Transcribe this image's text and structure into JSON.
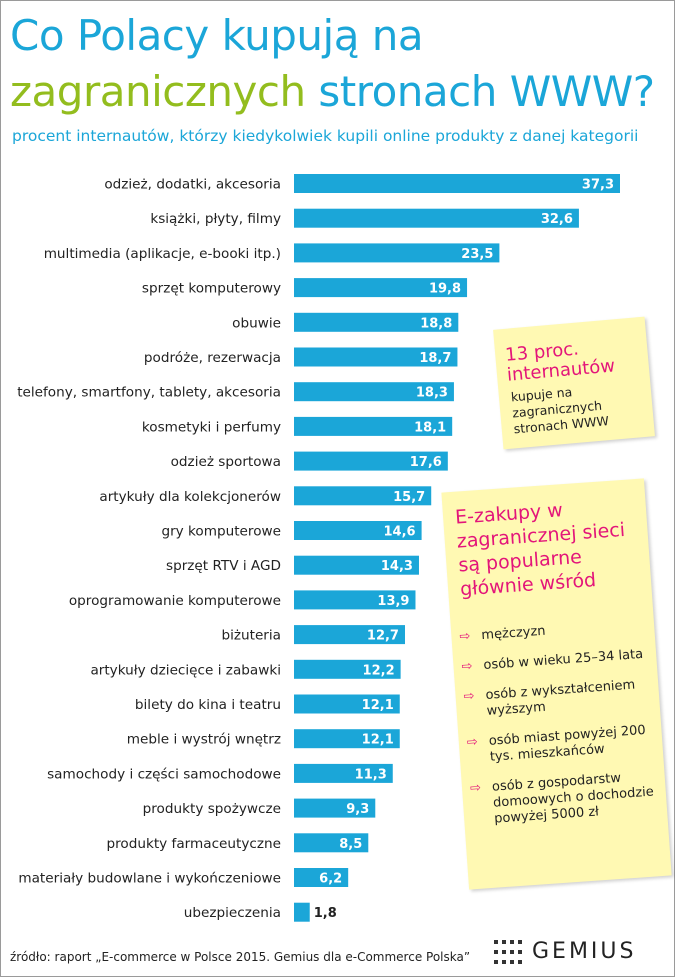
{
  "title_line1": "Co Polacy kupują na",
  "title_line2_green": "zagranicznych",
  "title_line2_rest": " stronach WWW?",
  "subtitle": "procent internautów, którzy kiedykolwiek  kupili online produkty z danej kategorii",
  "colors": {
    "bar": "#1ba6d8",
    "title_blue": "#1ba6d8",
    "title_green": "#93bd1e",
    "accent_pink": "#e3157a",
    "note_bg": "#fff9b3"
  },
  "chart_data": {
    "type": "bar",
    "orientation": "horizontal",
    "categories": [
      "odzież, dodatki, akcesoria",
      "książki, płyty, filmy",
      "multimedia (aplikacje, e-booki itp.)",
      "sprzęt komputerowy",
      "obuwie",
      "podróże, rezerwacja",
      "telefony, smartfony, tablety, akcesoria",
      "kosmetyki i perfumy",
      "odzież sportowa",
      "artykuły dla kolekcjonerów",
      "gry komputerowe",
      "sprzęt RTV i AGD",
      "oprogramowanie komputerowe",
      "biżuteria",
      "artykuły dziecięce i zabawki",
      "bilety do kina i teatru",
      "meble i wystrój wnętrz",
      "samochody i części samochodowe",
      "produkty spożywcze",
      "produkty farmaceutyczne",
      "materiały budowlane i wykończeniowe",
      "ubezpieczenia"
    ],
    "values": [
      37.3,
      32.6,
      23.5,
      19.8,
      18.8,
      18.7,
      18.3,
      18.1,
      17.6,
      15.7,
      14.6,
      14.3,
      13.9,
      12.7,
      12.2,
      12.1,
      12.1,
      11.3,
      9.3,
      8.5,
      6.2,
      1.8
    ],
    "value_labels": [
      "37,3",
      "32,6",
      "23,5",
      "19,8",
      "18,8",
      "18,7",
      "18,3",
      "18,1",
      "17,6",
      "15,7",
      "14,6",
      "14,3",
      "13,9",
      "12,7",
      "12,2",
      "12,1",
      "12,1",
      "11,3",
      "9,3",
      "8,5",
      "6,2",
      "1,8"
    ],
    "xlim": [
      0,
      37.3
    ],
    "grid": false,
    "legend": "none"
  },
  "note1": {
    "headline": "13 proc. internautów",
    "body": "kupuje na zagranicznych stronach WWW"
  },
  "note2": {
    "headline": "E-zakupy w zagranicznej sieci są popularne głównie wśród",
    "arrow_glyph": "⇨",
    "items": [
      "mężczyzn",
      "osób w wieku 25–34 lata",
      "osób z wykształceniem wyższym",
      "osób miast powyżej 200 tys. mieszkańców",
      "osób z gospodarstw domoowych o dochodzie powyżej 5000 zł"
    ]
  },
  "source": "źródło: raport „E-commerce w Polsce 2015. Gemius dla e-Commerce Polska”",
  "logo": {
    "text": "GEMIUS"
  }
}
